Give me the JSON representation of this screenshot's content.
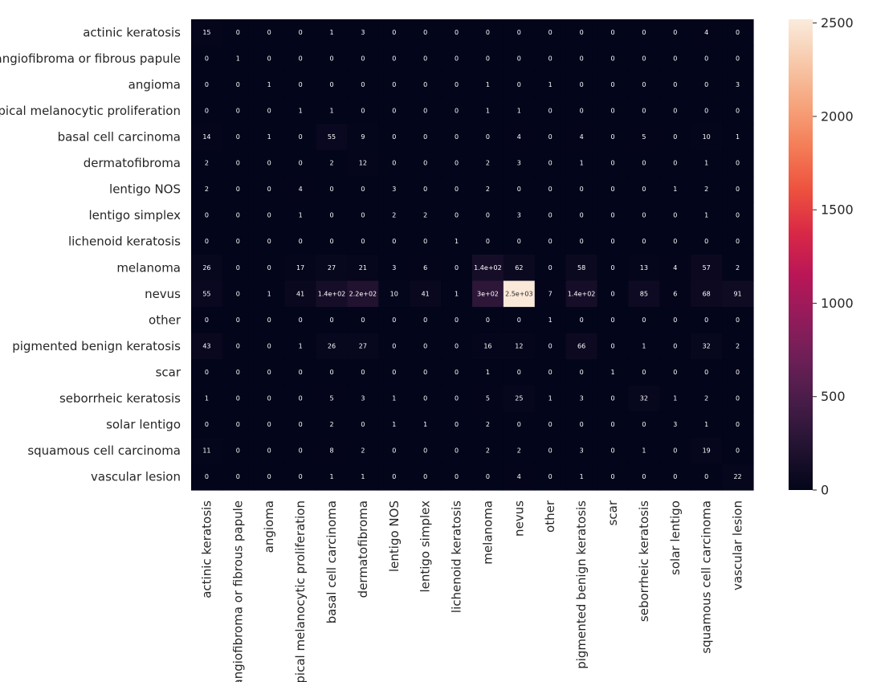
{
  "chart_data": {
    "type": "heatmap",
    "title": "",
    "xlabel": "",
    "ylabel": "",
    "row_labels": [
      "actinic keratosis",
      "angiofibroma or fibrous papule",
      "angioma",
      "atypical melanocytic proliferation",
      "basal cell carcinoma",
      "dermatofibroma",
      "lentigo NOS",
      "lentigo simplex",
      "lichenoid keratosis",
      "melanoma",
      "nevus",
      "other",
      "pigmented benign keratosis",
      "scar",
      "seborrheic keratosis",
      "solar lentigo",
      "squamous cell carcinoma",
      "vascular lesion"
    ],
    "col_labels": [
      "actinic keratosis",
      "angiofibroma or fibrous papule",
      "angioma",
      "atypical melanocytic proliferation",
      "basal cell carcinoma",
      "dermatofibroma",
      "lentigo NOS",
      "lentigo simplex",
      "lichenoid keratosis",
      "melanoma",
      "nevus",
      "other",
      "pigmented benign keratosis",
      "scar",
      "seborrheic keratosis",
      "solar lentigo",
      "squamous cell carcinoma",
      "vascular lesion"
    ],
    "values": [
      [
        15,
        0,
        0,
        0,
        1,
        3,
        0,
        0,
        0,
        0,
        0,
        0,
        0,
        0,
        0,
        0,
        4,
        0
      ],
      [
        0,
        1,
        0,
        0,
        0,
        0,
        0,
        0,
        0,
        0,
        0,
        0,
        0,
        0,
        0,
        0,
        0,
        0
      ],
      [
        0,
        0,
        1,
        0,
        0,
        0,
        0,
        0,
        0,
        1,
        0,
        1,
        0,
        0,
        0,
        0,
        0,
        3
      ],
      [
        0,
        0,
        0,
        1,
        1,
        0,
        0,
        0,
        0,
        1,
        1,
        0,
        0,
        0,
        0,
        0,
        0,
        0
      ],
      [
        14,
        0,
        1,
        0,
        55,
        9,
        0,
        0,
        0,
        0,
        4,
        0,
        4,
        0,
        5,
        0,
        10,
        1
      ],
      [
        2,
        0,
        0,
        0,
        2,
        12,
        0,
        0,
        0,
        2,
        3,
        0,
        1,
        0,
        0,
        0,
        1,
        0
      ],
      [
        2,
        0,
        0,
        4,
        0,
        0,
        3,
        0,
        0,
        2,
        0,
        0,
        0,
        0,
        0,
        1,
        2,
        0
      ],
      [
        0,
        0,
        0,
        1,
        0,
        0,
        2,
        2,
        0,
        0,
        3,
        0,
        0,
        0,
        0,
        0,
        1,
        0
      ],
      [
        0,
        0,
        0,
        0,
        0,
        0,
        0,
        0,
        1,
        0,
        0,
        0,
        0,
        0,
        0,
        0,
        0,
        0
      ],
      [
        26,
        0,
        0,
        17,
        27,
        21,
        3,
        6,
        0,
        140,
        62,
        0,
        58,
        0,
        13,
        4,
        57,
        2
      ],
      [
        55,
        0,
        1,
        41,
        140,
        220,
        10,
        41,
        1,
        300,
        2500,
        7,
        140,
        0,
        85,
        6,
        68,
        91
      ],
      [
        0,
        0,
        0,
        0,
        0,
        0,
        0,
        0,
        0,
        0,
        0,
        1,
        0,
        0,
        0,
        0,
        0,
        0
      ],
      [
        43,
        0,
        0,
        1,
        26,
        27,
        0,
        0,
        0,
        16,
        12,
        0,
        66,
        0,
        1,
        0,
        32,
        2
      ],
      [
        0,
        0,
        0,
        0,
        0,
        0,
        0,
        0,
        0,
        1,
        0,
        0,
        0,
        1,
        0,
        0,
        0,
        0
      ],
      [
        1,
        0,
        0,
        0,
        5,
        3,
        1,
        0,
        0,
        5,
        25,
        1,
        3,
        0,
        32,
        1,
        2,
        0
      ],
      [
        0,
        0,
        0,
        0,
        2,
        0,
        1,
        1,
        0,
        2,
        0,
        0,
        0,
        0,
        0,
        3,
        1,
        0
      ],
      [
        11,
        0,
        0,
        0,
        8,
        2,
        0,
        0,
        0,
        2,
        2,
        0,
        3,
        0,
        1,
        0,
        19,
        0
      ],
      [
        0,
        0,
        0,
        0,
        1,
        1,
        0,
        0,
        0,
        0,
        4,
        0,
        1,
        0,
        0,
        0,
        0,
        22
      ]
    ],
    "annotations": [
      [
        "15",
        "0",
        "0",
        "0",
        "1",
        "3",
        "0",
        "0",
        "0",
        "0",
        "0",
        "0",
        "0",
        "0",
        "0",
        "0",
        "4",
        "0"
      ],
      [
        "0",
        "1",
        "0",
        "0",
        "0",
        "0",
        "0",
        "0",
        "0",
        "0",
        "0",
        "0",
        "0",
        "0",
        "0",
        "0",
        "0",
        "0"
      ],
      [
        "0",
        "0",
        "1",
        "0",
        "0",
        "0",
        "0",
        "0",
        "0",
        "1",
        "0",
        "1",
        "0",
        "0",
        "0",
        "0",
        "0",
        "3"
      ],
      [
        "0",
        "0",
        "0",
        "1",
        "1",
        "0",
        "0",
        "0",
        "0",
        "1",
        "1",
        "0",
        "0",
        "0",
        "0",
        "0",
        "0",
        "0"
      ],
      [
        "14",
        "0",
        "1",
        "0",
        "55",
        "9",
        "0",
        "0",
        "0",
        "0",
        "4",
        "0",
        "4",
        "0",
        "5",
        "0",
        "10",
        "1"
      ],
      [
        "2",
        "0",
        "0",
        "0",
        "2",
        "12",
        "0",
        "0",
        "0",
        "2",
        "3",
        "0",
        "1",
        "0",
        "0",
        "0",
        "1",
        "0"
      ],
      [
        "2",
        "0",
        "0",
        "4",
        "0",
        "0",
        "3",
        "0",
        "0",
        "2",
        "0",
        "0",
        "0",
        "0",
        "0",
        "1",
        "2",
        "0"
      ],
      [
        "0",
        "0",
        "0",
        "1",
        "0",
        "0",
        "2",
        "2",
        "0",
        "0",
        "3",
        "0",
        "0",
        "0",
        "0",
        "0",
        "1",
        "0"
      ],
      [
        "0",
        "0",
        "0",
        "0",
        "0",
        "0",
        "0",
        "0",
        "1",
        "0",
        "0",
        "0",
        "0",
        "0",
        "0",
        "0",
        "0",
        "0"
      ],
      [
        "26",
        "0",
        "0",
        "17",
        "27",
        "21",
        "3",
        "6",
        "0",
        "1.4e+02",
        "62",
        "0",
        "58",
        "0",
        "13",
        "4",
        "57",
        "2"
      ],
      [
        "55",
        "0",
        "1",
        "41",
        "1.4e+02",
        "2.2e+02",
        "10",
        "41",
        "1",
        "3e+02",
        "2.5e+03",
        "7",
        "1.4e+02",
        "0",
        "85",
        "6",
        "68",
        "91"
      ],
      [
        "0",
        "0",
        "0",
        "0",
        "0",
        "0",
        "0",
        "0",
        "0",
        "0",
        "0",
        "1",
        "0",
        "0",
        "0",
        "0",
        "0",
        "0"
      ],
      [
        "43",
        "0",
        "0",
        "1",
        "26",
        "27",
        "0",
        "0",
        "0",
        "16",
        "12",
        "0",
        "66",
        "0",
        "1",
        "0",
        "32",
        "2"
      ],
      [
        "0",
        "0",
        "0",
        "0",
        "0",
        "0",
        "0",
        "0",
        "0",
        "1",
        "0",
        "0",
        "0",
        "1",
        "0",
        "0",
        "0",
        "0"
      ],
      [
        "1",
        "0",
        "0",
        "0",
        "5",
        "3",
        "1",
        "0",
        "0",
        "5",
        "25",
        "1",
        "3",
        "0",
        "32",
        "1",
        "2",
        "0"
      ],
      [
        "0",
        "0",
        "0",
        "0",
        "2",
        "0",
        "1",
        "1",
        "0",
        "2",
        "0",
        "0",
        "0",
        "0",
        "0",
        "3",
        "1",
        "0"
      ],
      [
        "11",
        "0",
        "0",
        "0",
        "8",
        "2",
        "0",
        "0",
        "0",
        "2",
        "2",
        "0",
        "3",
        "0",
        "1",
        "0",
        "19",
        "0"
      ],
      [
        "0",
        "0",
        "0",
        "0",
        "1",
        "1",
        "0",
        "0",
        "0",
        "0",
        "4",
        "0",
        "1",
        "0",
        "0",
        "0",
        "0",
        "22"
      ]
    ],
    "colorbar": {
      "min": 0,
      "max": 2520,
      "ticks": [
        0,
        500,
        1000,
        1500,
        2000,
        2500
      ],
      "colormap": "rocket",
      "colormap_stops": [
        "#03051a",
        "#221331",
        "#451c47",
        "#6a1f56",
        "#921c5b",
        "#b91657",
        "#d92847",
        "#ed513e",
        "#f47c56",
        "#f6a47c",
        "#f7c9aa",
        "#faebdd"
      ]
    },
    "grid": false,
    "legend": "colorbar-right"
  }
}
